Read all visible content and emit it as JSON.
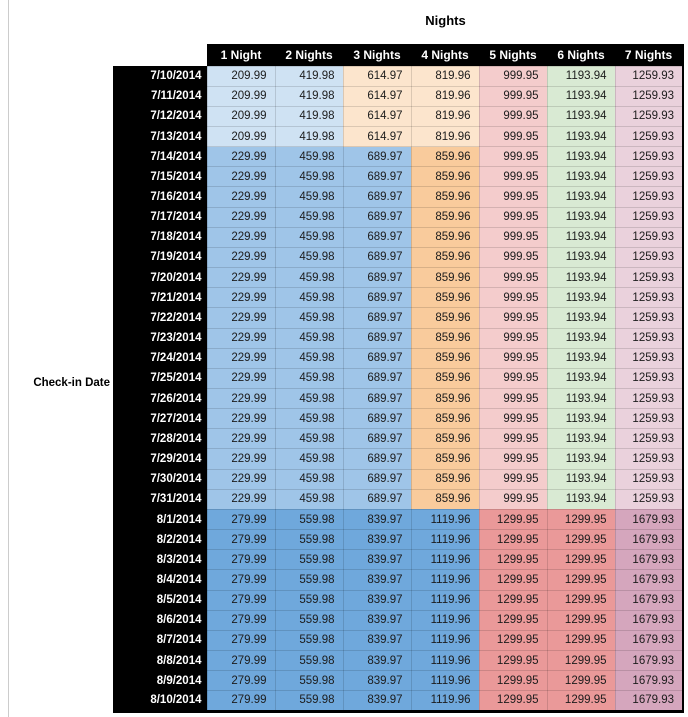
{
  "palette": {
    "light_blue_3": "#cfe2f3",
    "light_blue_2": "#9fc5e8",
    "light_blue_1": "#6fa8dc",
    "light_orange_3": "#fce5cd",
    "light_orange_2": "#f9cb9c",
    "light_red_3": "#f4cccc",
    "light_red_2": "#ea9999",
    "light_green_3": "#d9ead3",
    "light_magenta_3": "#ead1dc",
    "light_magenta_2": "#d5a6bd",
    "header_bg": "#000000",
    "header_text": "#ffffff",
    "value_text": "#1c1c1c"
  },
  "tiers": {
    "early_july": [
      "light_blue_3",
      "light_blue_3",
      "light_orange_3",
      "light_orange_3",
      "light_red_3",
      "light_green_3",
      "light_magenta_3"
    ],
    "mid_july": [
      "light_blue_2",
      "light_blue_2",
      "light_blue_2",
      "light_orange_2",
      "light_red_3",
      "light_green_3",
      "light_magenta_3"
    ],
    "august": [
      "light_blue_1",
      "light_blue_1",
      "light_blue_1",
      "light_blue_1",
      "light_red_2",
      "light_red_2",
      "light_magenta_2"
    ]
  },
  "chart_data": {
    "type": "table",
    "title": "Nights",
    "row_label": "Check-in Date",
    "columns": [
      "1 Night",
      "2 Nights",
      "3 Nights",
      "4 Nights",
      "5 Nights",
      "6 Nights",
      "7 Nights"
    ],
    "rows": [
      {
        "date": "7/10/2014",
        "tier": "early_july",
        "values": [
          209.99,
          419.98,
          614.97,
          819.96,
          999.95,
          1193.94,
          1259.93
        ]
      },
      {
        "date": "7/11/2014",
        "tier": "early_july",
        "values": [
          209.99,
          419.98,
          614.97,
          819.96,
          999.95,
          1193.94,
          1259.93
        ]
      },
      {
        "date": "7/12/2014",
        "tier": "early_july",
        "values": [
          209.99,
          419.98,
          614.97,
          819.96,
          999.95,
          1193.94,
          1259.93
        ]
      },
      {
        "date": "7/13/2014",
        "tier": "early_july",
        "values": [
          209.99,
          419.98,
          614.97,
          819.96,
          999.95,
          1193.94,
          1259.93
        ]
      },
      {
        "date": "7/14/2014",
        "tier": "mid_july",
        "values": [
          229.99,
          459.98,
          689.97,
          859.96,
          999.95,
          1193.94,
          1259.93
        ]
      },
      {
        "date": "7/15/2014",
        "tier": "mid_july",
        "values": [
          229.99,
          459.98,
          689.97,
          859.96,
          999.95,
          1193.94,
          1259.93
        ]
      },
      {
        "date": "7/16/2014",
        "tier": "mid_july",
        "values": [
          229.99,
          459.98,
          689.97,
          859.96,
          999.95,
          1193.94,
          1259.93
        ]
      },
      {
        "date": "7/17/2014",
        "tier": "mid_july",
        "values": [
          229.99,
          459.98,
          689.97,
          859.96,
          999.95,
          1193.94,
          1259.93
        ]
      },
      {
        "date": "7/18/2014",
        "tier": "mid_july",
        "values": [
          229.99,
          459.98,
          689.97,
          859.96,
          999.95,
          1193.94,
          1259.93
        ]
      },
      {
        "date": "7/19/2014",
        "tier": "mid_july",
        "values": [
          229.99,
          459.98,
          689.97,
          859.96,
          999.95,
          1193.94,
          1259.93
        ]
      },
      {
        "date": "7/20/2014",
        "tier": "mid_july",
        "values": [
          229.99,
          459.98,
          689.97,
          859.96,
          999.95,
          1193.94,
          1259.93
        ]
      },
      {
        "date": "7/21/2014",
        "tier": "mid_july",
        "values": [
          229.99,
          459.98,
          689.97,
          859.96,
          999.95,
          1193.94,
          1259.93
        ]
      },
      {
        "date": "7/22/2014",
        "tier": "mid_july",
        "values": [
          229.99,
          459.98,
          689.97,
          859.96,
          999.95,
          1193.94,
          1259.93
        ]
      },
      {
        "date": "7/23/2014",
        "tier": "mid_july",
        "values": [
          229.99,
          459.98,
          689.97,
          859.96,
          999.95,
          1193.94,
          1259.93
        ]
      },
      {
        "date": "7/24/2014",
        "tier": "mid_july",
        "values": [
          229.99,
          459.98,
          689.97,
          859.96,
          999.95,
          1193.94,
          1259.93
        ]
      },
      {
        "date": "7/25/2014",
        "tier": "mid_july",
        "values": [
          229.99,
          459.98,
          689.97,
          859.96,
          999.95,
          1193.94,
          1259.93
        ]
      },
      {
        "date": "7/26/2014",
        "tier": "mid_july",
        "values": [
          229.99,
          459.98,
          689.97,
          859.96,
          999.95,
          1193.94,
          1259.93
        ]
      },
      {
        "date": "7/27/2014",
        "tier": "mid_july",
        "values": [
          229.99,
          459.98,
          689.97,
          859.96,
          999.95,
          1193.94,
          1259.93
        ]
      },
      {
        "date": "7/28/2014",
        "tier": "mid_july",
        "values": [
          229.99,
          459.98,
          689.97,
          859.96,
          999.95,
          1193.94,
          1259.93
        ]
      },
      {
        "date": "7/29/2014",
        "tier": "mid_july",
        "values": [
          229.99,
          459.98,
          689.97,
          859.96,
          999.95,
          1193.94,
          1259.93
        ]
      },
      {
        "date": "7/30/2014",
        "tier": "mid_july",
        "values": [
          229.99,
          459.98,
          689.97,
          859.96,
          999.95,
          1193.94,
          1259.93
        ]
      },
      {
        "date": "7/31/2014",
        "tier": "mid_july",
        "values": [
          229.99,
          459.98,
          689.97,
          859.96,
          999.95,
          1193.94,
          1259.93
        ]
      },
      {
        "date": "8/1/2014",
        "tier": "august",
        "values": [
          279.99,
          559.98,
          839.97,
          1119.96,
          1299.95,
          1299.95,
          1679.93
        ]
      },
      {
        "date": "8/2/2014",
        "tier": "august",
        "values": [
          279.99,
          559.98,
          839.97,
          1119.96,
          1299.95,
          1299.95,
          1679.93
        ]
      },
      {
        "date": "8/3/2014",
        "tier": "august",
        "values": [
          279.99,
          559.98,
          839.97,
          1119.96,
          1299.95,
          1299.95,
          1679.93
        ]
      },
      {
        "date": "8/4/2014",
        "tier": "august",
        "values": [
          279.99,
          559.98,
          839.97,
          1119.96,
          1299.95,
          1299.95,
          1679.93
        ]
      },
      {
        "date": "8/5/2014",
        "tier": "august",
        "values": [
          279.99,
          559.98,
          839.97,
          1119.96,
          1299.95,
          1299.95,
          1679.93
        ]
      },
      {
        "date": "8/6/2014",
        "tier": "august",
        "values": [
          279.99,
          559.98,
          839.97,
          1119.96,
          1299.95,
          1299.95,
          1679.93
        ]
      },
      {
        "date": "8/7/2014",
        "tier": "august",
        "values": [
          279.99,
          559.98,
          839.97,
          1119.96,
          1299.95,
          1299.95,
          1679.93
        ]
      },
      {
        "date": "8/8/2014",
        "tier": "august",
        "values": [
          279.99,
          559.98,
          839.97,
          1119.96,
          1299.95,
          1299.95,
          1679.93
        ]
      },
      {
        "date": "8/9/2014",
        "tier": "august",
        "values": [
          279.99,
          559.98,
          839.97,
          1119.96,
          1299.95,
          1299.95,
          1679.93
        ]
      },
      {
        "date": "8/10/2014",
        "tier": "august",
        "values": [
          279.99,
          559.98,
          839.97,
          1119.96,
          1299.95,
          1299.95,
          1679.93
        ]
      }
    ]
  }
}
